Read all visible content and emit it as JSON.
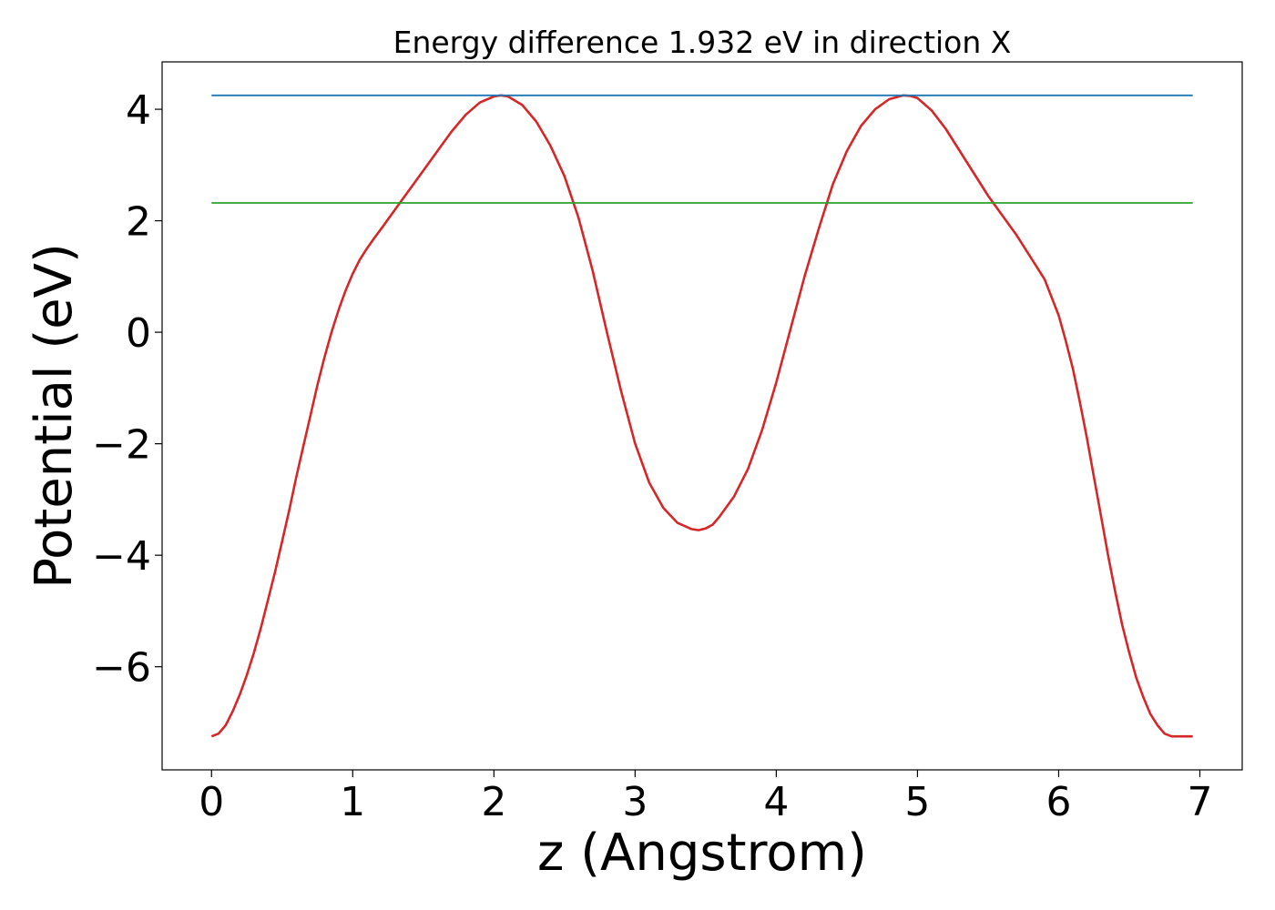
{
  "chart_data": {
    "type": "line",
    "title": "Energy difference 1.932 eV in direction X",
    "xlabel": "z (Angstrom)",
    "ylabel": "Potential (eV)",
    "xlim": [
      -0.35,
      7.3
    ],
    "ylim": [
      -7.85,
      4.85
    ],
    "x_ticks": [
      0,
      1,
      2,
      3,
      4,
      5,
      6,
      7
    ],
    "x_tick_labels": [
      "0",
      "1",
      "2",
      "3",
      "4",
      "5",
      "6",
      "7"
    ],
    "y_ticks": [
      -6,
      -4,
      -2,
      0,
      2,
      4
    ],
    "y_tick_labels": [
      "−6",
      "−4",
      "−2",
      "0",
      "2",
      "4"
    ],
    "grid": false,
    "series": [
      {
        "color": "#d62728",
        "x": [
          0,
          0.05,
          0.1,
          0.15,
          0.2,
          0.25,
          0.3,
          0.35,
          0.4,
          0.45,
          0.5,
          0.55,
          0.6,
          0.65,
          0.7,
          0.75,
          0.8,
          0.85,
          0.9,
          0.95,
          1.0,
          1.05,
          1.1,
          1.15,
          1.2,
          1.3,
          1.4,
          1.5,
          1.6,
          1.7,
          1.8,
          1.9,
          2.0,
          2.05,
          2.1,
          2.2,
          2.3,
          2.4,
          2.5,
          2.6,
          2.7,
          2.8,
          2.9,
          3.0,
          3.1,
          3.2,
          3.3,
          3.4,
          3.45,
          3.5,
          3.55,
          3.6,
          3.7,
          3.8,
          3.9,
          4.0,
          4.1,
          4.2,
          4.3,
          4.4,
          4.5,
          4.6,
          4.7,
          4.8,
          4.9,
          4.95,
          5.0,
          5.1,
          5.2,
          5.3,
          5.4,
          5.5,
          5.6,
          5.7,
          5.8,
          5.9,
          6.0,
          6.05,
          6.1,
          6.15,
          6.2,
          6.25,
          6.3,
          6.35,
          6.4,
          6.45,
          6.5,
          6.55,
          6.6,
          6.65,
          6.7,
          6.75,
          6.8,
          6.85,
          6.9,
          6.95
        ],
        "y": [
          -7.25,
          -7.2,
          -7.05,
          -6.8,
          -6.5,
          -6.15,
          -5.75,
          -5.3,
          -4.8,
          -4.3,
          -3.75,
          -3.2,
          -2.6,
          -2.05,
          -1.5,
          -0.95,
          -0.45,
          0.0,
          0.4,
          0.75,
          1.05,
          1.3,
          1.5,
          1.68,
          1.85,
          2.2,
          2.55,
          2.9,
          3.25,
          3.6,
          3.9,
          4.12,
          4.23,
          4.25,
          4.23,
          4.08,
          3.78,
          3.35,
          2.8,
          2.05,
          1.1,
          0.0,
          -1.05,
          -2.0,
          -2.7,
          -3.15,
          -3.42,
          -3.53,
          -3.55,
          -3.52,
          -3.45,
          -3.3,
          -2.95,
          -2.45,
          -1.75,
          -0.9,
          0.05,
          1.0,
          1.85,
          2.65,
          3.25,
          3.7,
          4.0,
          4.18,
          4.25,
          4.24,
          4.2,
          3.98,
          3.65,
          3.25,
          2.85,
          2.45,
          2.1,
          1.75,
          1.35,
          0.95,
          0.3,
          -0.15,
          -0.65,
          -1.25,
          -1.9,
          -2.6,
          -3.3,
          -4.0,
          -4.65,
          -5.25,
          -5.75,
          -6.2,
          -6.55,
          -6.85,
          -7.05,
          -7.2,
          -7.25,
          -7.25,
          -7.25,
          -7.25
        ]
      },
      {
        "color": "#1f77b4",
        "x": [
          0,
          6.95
        ],
        "y": [
          4.25,
          4.25
        ]
      },
      {
        "color": "#2ca02c",
        "x": [
          0,
          6.95
        ],
        "y": [
          2.32,
          2.32
        ]
      }
    ]
  }
}
